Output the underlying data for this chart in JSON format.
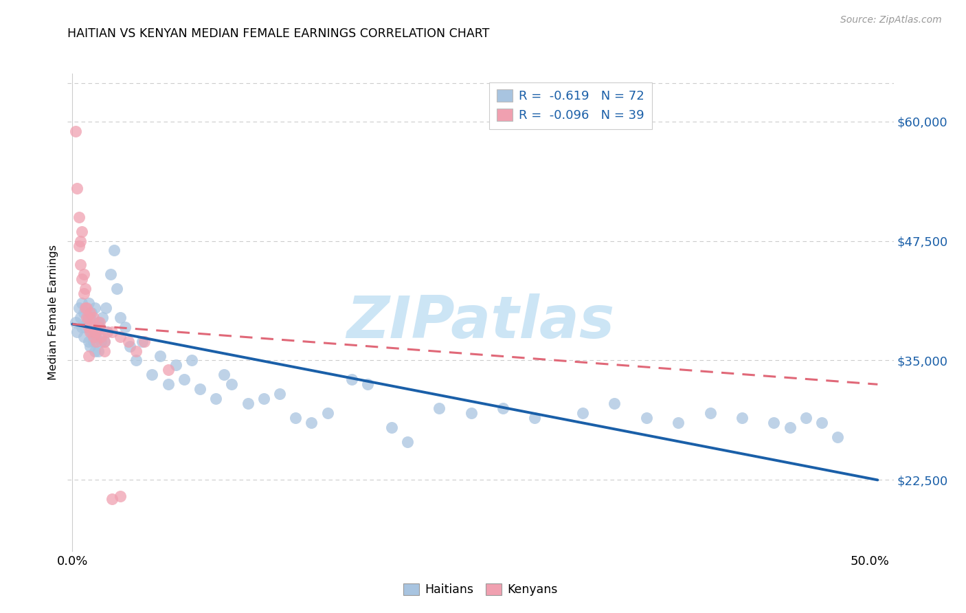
{
  "title": "HAITIAN VS KENYAN MEDIAN FEMALE EARNINGS CORRELATION CHART",
  "source": "Source: ZipAtlas.com",
  "ylabel": "Median Female Earnings",
  "ytick_labels": [
    "$22,500",
    "$35,000",
    "$47,500",
    "$60,000"
  ],
  "ytick_values": [
    22500,
    35000,
    47500,
    60000
  ],
  "ymin": 15000,
  "ymax": 65000,
  "xmin": -0.003,
  "xmax": 0.515,
  "blue_color": "#a8c4e0",
  "pink_color": "#f0a0b0",
  "trend_blue": "#1a5fa8",
  "trend_pink": "#e06878",
  "watermark_color": "#cce5f5",
  "watermark": "ZIPatlas",
  "grid_color": "#cccccc",
  "right_label_color": "#1a5fa8",
  "source_color": "#999999",
  "blue_x": [
    0.002,
    0.003,
    0.004,
    0.005,
    0.006,
    0.006,
    0.007,
    0.007,
    0.008,
    0.009,
    0.01,
    0.01,
    0.011,
    0.011,
    0.012,
    0.012,
    0.013,
    0.014,
    0.014,
    0.015,
    0.015,
    0.016,
    0.016,
    0.017,
    0.018,
    0.019,
    0.02,
    0.021,
    0.022,
    0.024,
    0.026,
    0.028,
    0.03,
    0.033,
    0.036,
    0.04,
    0.044,
    0.05,
    0.055,
    0.06,
    0.065,
    0.07,
    0.075,
    0.08,
    0.09,
    0.095,
    0.1,
    0.11,
    0.12,
    0.13,
    0.14,
    0.15,
    0.16,
    0.175,
    0.185,
    0.2,
    0.21,
    0.23,
    0.25,
    0.27,
    0.29,
    0.32,
    0.34,
    0.36,
    0.38,
    0.4,
    0.42,
    0.44,
    0.45,
    0.46,
    0.47,
    0.48
  ],
  "blue_y": [
    39000,
    38000,
    40500,
    39500,
    41000,
    38500,
    40000,
    37500,
    38500,
    39000,
    41000,
    37000,
    39500,
    36500,
    40000,
    38000,
    37000,
    40500,
    36000,
    38000,
    37500,
    39000,
    36000,
    38500,
    37000,
    39500,
    37000,
    40500,
    38000,
    44000,
    46500,
    42500,
    39500,
    38500,
    36500,
    35000,
    37000,
    33500,
    35500,
    32500,
    34500,
    33000,
    35000,
    32000,
    31000,
    33500,
    32500,
    30500,
    31000,
    31500,
    29000,
    28500,
    29500,
    33000,
    32500,
    28000,
    26500,
    30000,
    29500,
    30000,
    29000,
    29500,
    30500,
    29000,
    28500,
    29500,
    29000,
    28500,
    28000,
    29000,
    28500,
    27000
  ],
  "pink_x": [
    0.002,
    0.003,
    0.004,
    0.004,
    0.005,
    0.005,
    0.006,
    0.006,
    0.007,
    0.007,
    0.008,
    0.008,
    0.009,
    0.009,
    0.01,
    0.01,
    0.011,
    0.011,
    0.012,
    0.013,
    0.013,
    0.014,
    0.015,
    0.016,
    0.017,
    0.018,
    0.02,
    0.022,
    0.025,
    0.03,
    0.035,
    0.04,
    0.045,
    0.06,
    0.02,
    0.015,
    0.01,
    0.025,
    0.03
  ],
  "pink_y": [
    59000,
    53000,
    50000,
    47000,
    45000,
    47500,
    48500,
    43500,
    42000,
    44000,
    40500,
    42500,
    39500,
    40500,
    38500,
    39500,
    38000,
    40000,
    38500,
    37500,
    39500,
    38000,
    37000,
    38500,
    39000,
    37500,
    37000,
    38000,
    38000,
    37500,
    37000,
    36000,
    37000,
    34000,
    36000,
    38000,
    35500,
    20500,
    20800
  ],
  "blue_trend_x": [
    0.0,
    0.505
  ],
  "blue_trend_y": [
    38800,
    22500
  ],
  "pink_trend_x": [
    0.0,
    0.505
  ],
  "pink_trend_y": [
    38800,
    32500
  ]
}
